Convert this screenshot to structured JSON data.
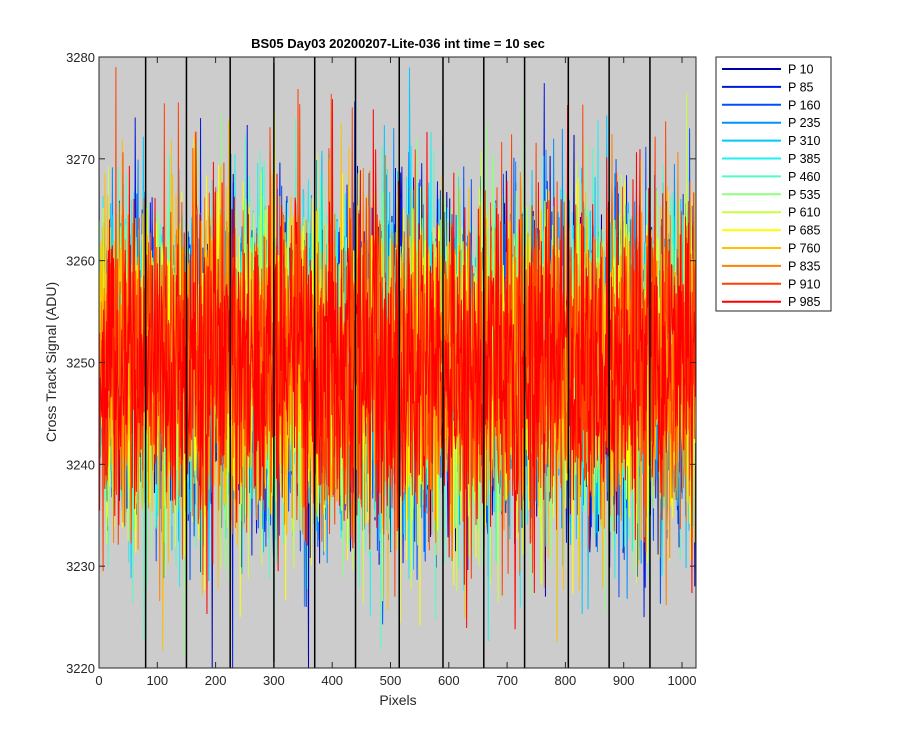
{
  "chart_data": {
    "type": "line",
    "title": "BS05 Day03 20200207-Lite-036 int time = 10 sec",
    "xlabel": "Pixels",
    "ylabel": "Cross Track Signal (ADU)",
    "xlim": [
      0,
      1024
    ],
    "ylim": [
      3220,
      3280
    ],
    "xticks": [
      0,
      100,
      200,
      300,
      400,
      500,
      600,
      700,
      800,
      900,
      1000
    ],
    "yticks": [
      3220,
      3230,
      3240,
      3250,
      3260,
      3270,
      3280
    ],
    "background_color": "#cccccc",
    "grid": false,
    "legend_position": "outside-top-right",
    "vertical_markers_x": [
      80,
      150,
      225,
      300,
      370,
      440,
      515,
      590,
      660,
      730,
      805,
      875,
      945
    ],
    "noise_model": {
      "mean": 3250,
      "std": 8,
      "min_observed": 3220,
      "max_observed": 3279,
      "num_points": 1024
    },
    "series": [
      {
        "name": "P 10",
        "color": "#0000aa"
      },
      {
        "name": "P 85",
        "color": "#0018e0"
      },
      {
        "name": "P 160",
        "color": "#0050ff"
      },
      {
        "name": "P 235",
        "color": "#0090ff"
      },
      {
        "name": "P 310",
        "color": "#00c8ff"
      },
      {
        "name": "P 385",
        "color": "#20f0f0"
      },
      {
        "name": "P 460",
        "color": "#50ffc0"
      },
      {
        "name": "P 535",
        "color": "#90ff80"
      },
      {
        "name": "P 610",
        "color": "#c8ff40"
      },
      {
        "name": "P 685",
        "color": "#ffff00"
      },
      {
        "name": "P 760",
        "color": "#ffc000"
      },
      {
        "name": "P 835",
        "color": "#ff8000"
      },
      {
        "name": "P 910",
        "color": "#ff4000"
      },
      {
        "name": "P 985",
        "color": "#ff0000"
      }
    ]
  }
}
